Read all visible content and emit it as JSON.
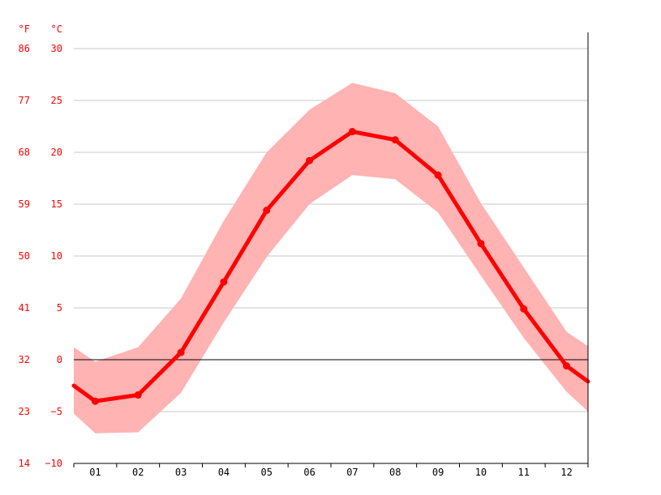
{
  "chart_data": {
    "type": "line",
    "units": {
      "fahrenheit": "°F",
      "celsius": "°C"
    },
    "y_ticks": [
      {
        "c": 30,
        "f": "86",
        "label": "30"
      },
      {
        "c": 25,
        "f": "77",
        "label": "25"
      },
      {
        "c": 20,
        "f": "68",
        "label": "20"
      },
      {
        "c": 15,
        "f": "59",
        "label": "15"
      },
      {
        "c": 10,
        "f": "50",
        "label": "10"
      },
      {
        "c": 5,
        "f": "41",
        "label": "5"
      },
      {
        "c": 0,
        "f": "32",
        "label": "0"
      },
      {
        "c": -5,
        "f": "23",
        "label": "−5"
      },
      {
        "c": -10,
        "f": "14",
        "label": "−10"
      }
    ],
    "ylim": [
      -10,
      30
    ],
    "categories": [
      "01",
      "02",
      "03",
      "04",
      "05",
      "06",
      "07",
      "08",
      "09",
      "10",
      "11",
      "12"
    ],
    "series": [
      {
        "values": [
          -4.0,
          -3.4,
          0.7,
          7.5,
          14.4,
          19.2,
          22.0,
          21.2,
          17.8,
          11.2,
          4.9,
          -0.6
        ]
      }
    ],
    "band": {
      "upper": [
        -0.2,
        1.2,
        5.9,
        13.4,
        20.0,
        24.1,
        26.7,
        25.7,
        22.5,
        15.1,
        8.9,
        2.7
      ],
      "lower": [
        -7.1,
        -7.0,
        -3.2,
        3.6,
        9.9,
        15.0,
        17.8,
        17.4,
        14.2,
        8.1,
        2.1,
        -3.1
      ]
    },
    "edge_values": {
      "left": -2.5,
      "right": -2.1,
      "band_left_upper": 1.2,
      "band_left_lower": -5.2,
      "band_right_upper": 1.3,
      "band_right_lower": -5.0
    },
    "colors": {
      "line": "#ff0000",
      "band": "#ffb3b3",
      "grid": "#c8c8c8",
      "zero": "#000000",
      "axis_label": "#ff0000"
    },
    "grid": true
  }
}
